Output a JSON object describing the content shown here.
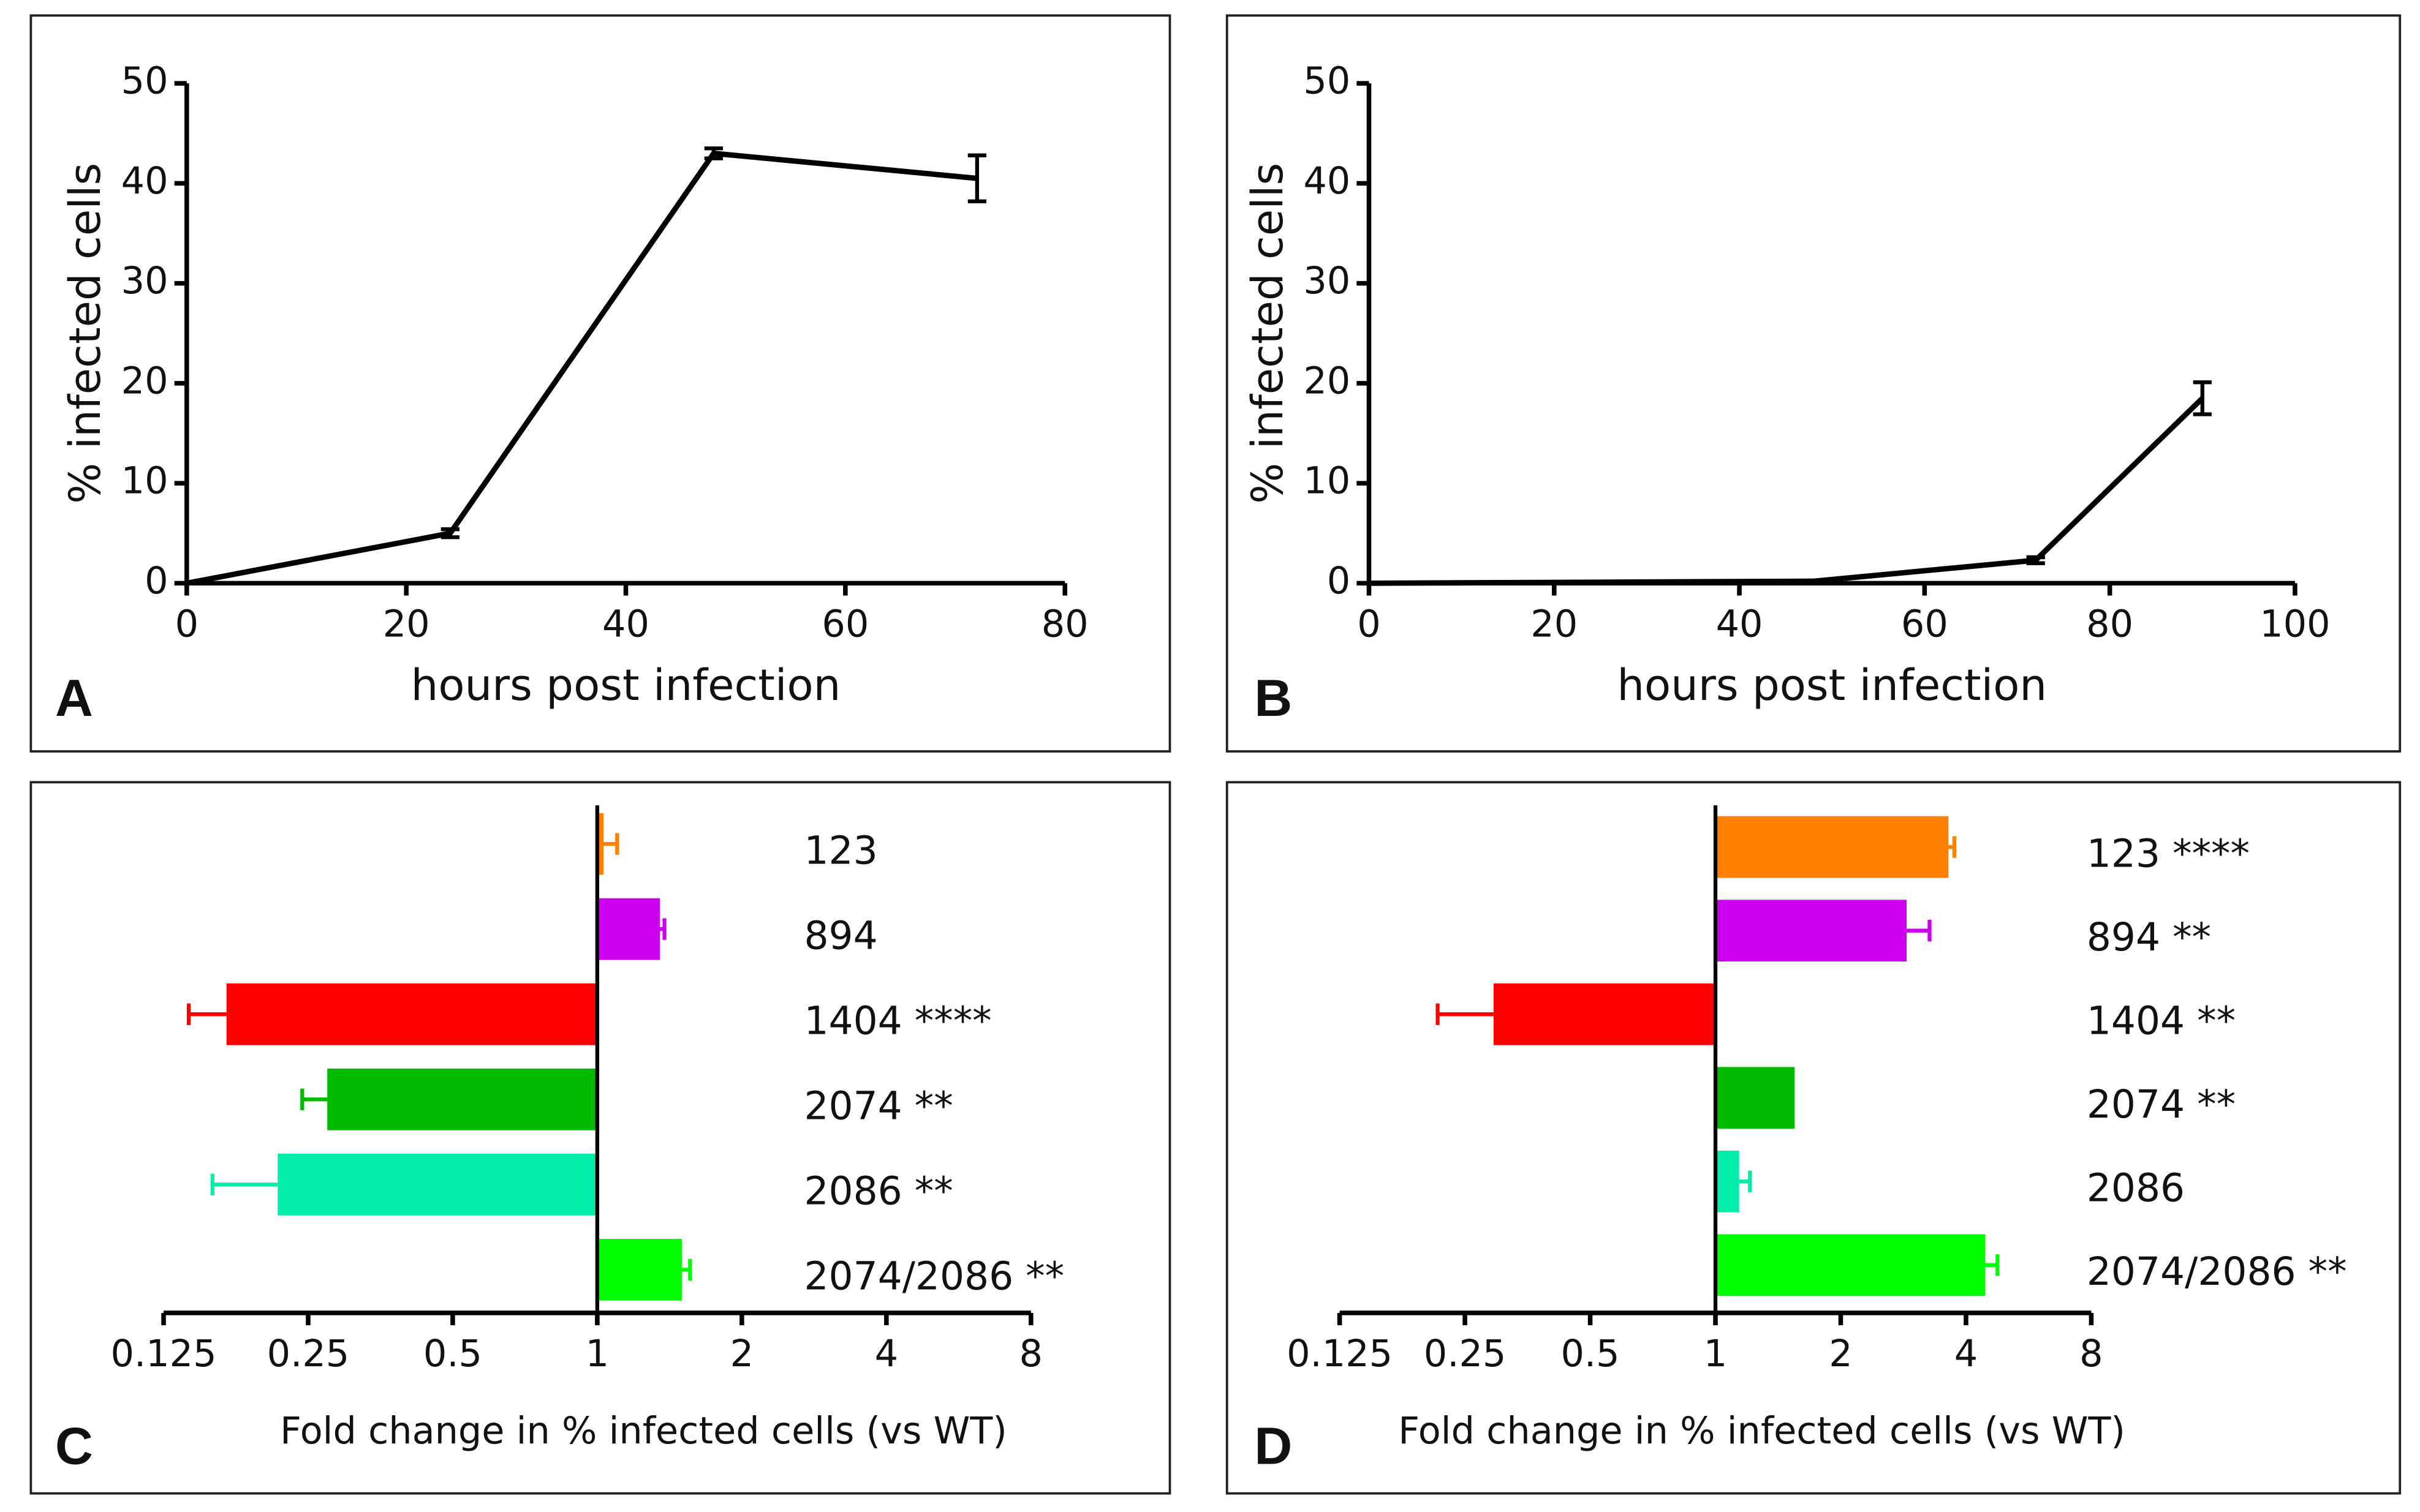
{
  "chart_data": [
    {
      "type": "line",
      "panel_label": "A",
      "xlabel": "hours post infection",
      "ylabel": "% infected cells",
      "x": [
        0,
        24,
        48,
        72
      ],
      "values": [
        0,
        5,
        43,
        40.5
      ],
      "errors": [
        0,
        0.4,
        0.5,
        2.3
      ],
      "color": "#000000",
      "xlim": [
        0,
        80
      ],
      "xticks": [
        0,
        20,
        40,
        60,
        80
      ],
      "ylim": [
        0,
        50
      ],
      "yticks": [
        0,
        10,
        20,
        30,
        40,
        50
      ]
    },
    {
      "type": "line",
      "panel_label": "B",
      "xlabel": "hours post infection",
      "ylabel": "% infected cells",
      "x": [
        0,
        24,
        48,
        72,
        90
      ],
      "values": [
        0,
        0.1,
        0.2,
        2.3,
        18.5
      ],
      "errors": [
        0,
        0,
        0,
        0.3,
        1.6
      ],
      "color": "#000000",
      "xlim": [
        0,
        100
      ],
      "xticks": [
        0,
        20,
        40,
        60,
        80,
        100
      ],
      "ylim": [
        0,
        50
      ],
      "yticks": [
        0,
        10,
        20,
        30,
        40,
        50
      ]
    },
    {
      "type": "bar",
      "orientation": "horizontal",
      "xscale": "log2",
      "panel_label": "C",
      "xlabel": "Fold change in % infected cells (vs WT)",
      "categories": [
        "123",
        "894",
        "1404 ****",
        "2074 **",
        "2086 **",
        "2074/2086 **"
      ],
      "values": [
        1.03,
        1.35,
        0.169,
        0.274,
        0.216,
        1.5
      ],
      "errors": [
        0.07,
        0.03,
        0.028,
        0.031,
        0.058,
        0.06
      ],
      "colors": [
        "#ff8000",
        "#cc00ee",
        "#ff0000",
        "#00bb00",
        "#00eeaa",
        "#00ff00"
      ],
      "xlim": [
        0.125,
        8
      ],
      "xticks": [
        0.125,
        0.25,
        0.5,
        1,
        2,
        4,
        8
      ]
    },
    {
      "type": "bar",
      "orientation": "horizontal",
      "xscale": "log2",
      "panel_label": "D",
      "xlabel": "Fold change in % infected cells (vs WT)",
      "categories": [
        "123 ****",
        "894 **",
        "1404 **",
        "2074 **",
        "2086",
        "2074/2086 **"
      ],
      "values": [
        3.63,
        2.88,
        0.293,
        1.55,
        1.14,
        4.45
      ],
      "errors": [
        0.12,
        0.39,
        0.078,
        0,
        0.07,
        0.31
      ],
      "colors": [
        "#ff8000",
        "#cc00ee",
        "#ff0000",
        "#00bb00",
        "#00eeaa",
        "#00ff00"
      ],
      "xlim": [
        0.125,
        8
      ],
      "xticks": [
        0.125,
        0.25,
        0.5,
        1,
        2,
        4,
        8
      ]
    }
  ]
}
